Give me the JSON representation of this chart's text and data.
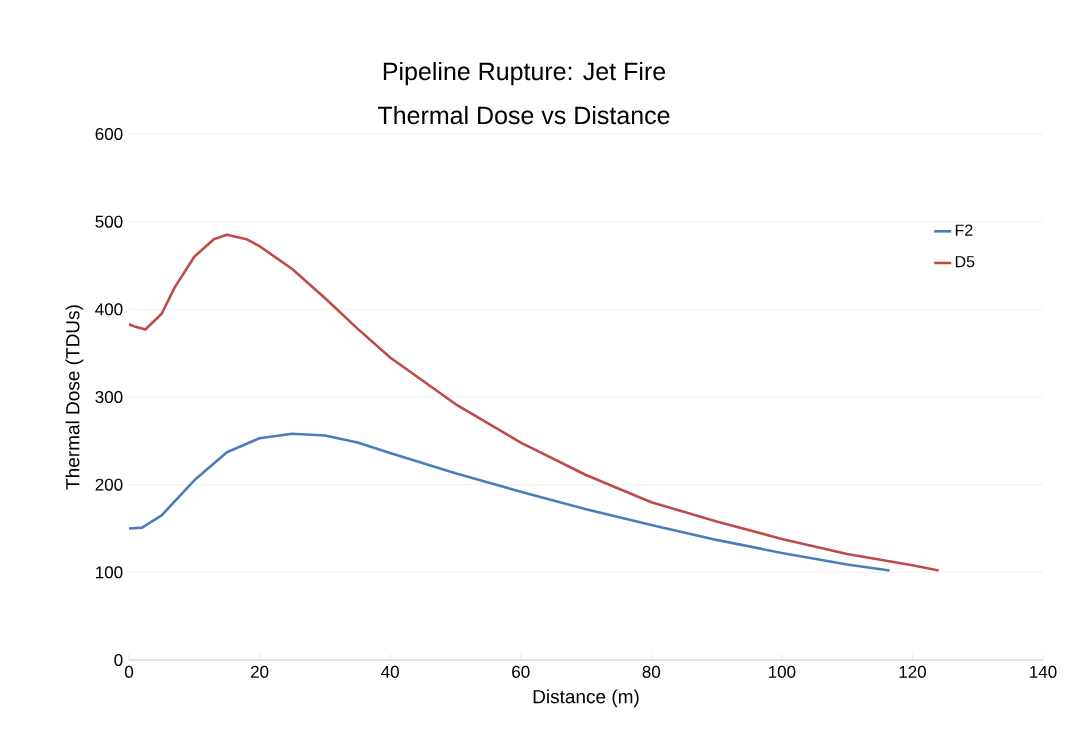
{
  "chart_data": {
    "type": "line",
    "title": "Pipeline Rupture: Jet Fire",
    "subtitle": "Thermal Dose vs Distance",
    "xlabel": "Distance (m)",
    "ylabel": "Thermal Dose (TDUs)",
    "series": [
      {
        "name": "F2",
        "color": "#4a7ebb",
        "x": [
          0,
          2,
          5,
          10,
          15,
          20,
          25,
          30,
          35,
          40,
          50,
          60,
          70,
          80,
          90,
          100,
          110,
          116.5
        ],
        "values": [
          150,
          151,
          165,
          205,
          237,
          253,
          258,
          256,
          248,
          236,
          213,
          192,
          172,
          154,
          137,
          122,
          109,
          102
        ]
      },
      {
        "name": "D5",
        "color": "#be4b48",
        "x": [
          0,
          1,
          2.5,
          5,
          7,
          10,
          13,
          15,
          18,
          20,
          25,
          30,
          35,
          40,
          50,
          60,
          70,
          80,
          90,
          100,
          110,
          120,
          124
        ],
        "values": [
          383,
          380,
          377,
          395,
          425,
          460,
          480,
          485,
          480,
          472,
          446,
          413,
          378,
          345,
          292,
          248,
          211,
          180,
          158,
          138,
          121,
          108,
          102
        ]
      }
    ],
    "xlim": [
      0,
      140
    ],
    "xticks": [
      0,
      20,
      40,
      60,
      80,
      100,
      120,
      140
    ],
    "ylim": [
      0,
      600
    ],
    "yticks": [
      0,
      100,
      200,
      300,
      400,
      500,
      600
    ],
    "grid": "y",
    "legend": "right",
    "marker": "none",
    "line_style": "solid"
  }
}
